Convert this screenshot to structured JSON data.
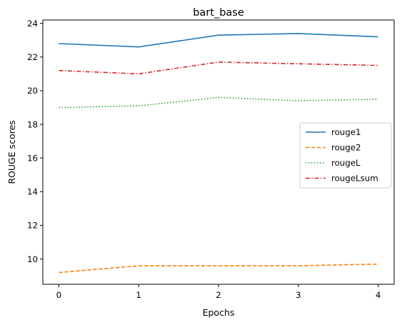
{
  "chart_data": {
    "type": "line",
    "title": "bart_base",
    "xlabel": "Epochs",
    "ylabel": "ROUGE scores",
    "x": [
      0,
      1,
      2,
      3,
      4
    ],
    "xticks": [
      "0",
      "1",
      "2",
      "3",
      "4"
    ],
    "xlim": [
      -0.2,
      4.2
    ],
    "yticks": [
      "10",
      "12",
      "14",
      "16",
      "18",
      "20",
      "22",
      "24"
    ],
    "ylim": [
      8.5,
      24.2
    ],
    "grid": false,
    "legend_position": "center-right",
    "series": [
      {
        "name": "rouge1",
        "values": [
          22.8,
          22.6,
          23.3,
          23.4,
          23.2
        ],
        "color": "#1f77b4",
        "style": "solid"
      },
      {
        "name": "rouge2",
        "values": [
          9.2,
          9.6,
          9.6,
          9.6,
          9.7
        ],
        "color": "#ff7f0e",
        "style": "dashed"
      },
      {
        "name": "rougeL",
        "values": [
          19.0,
          19.1,
          19.6,
          19.4,
          19.5
        ],
        "color": "#2ca02c",
        "style": "dotted"
      },
      {
        "name": "rougeLsum",
        "values": [
          21.2,
          21.0,
          21.7,
          21.6,
          21.5
        ],
        "color": "#d62728",
        "style": "dashdot"
      }
    ]
  }
}
